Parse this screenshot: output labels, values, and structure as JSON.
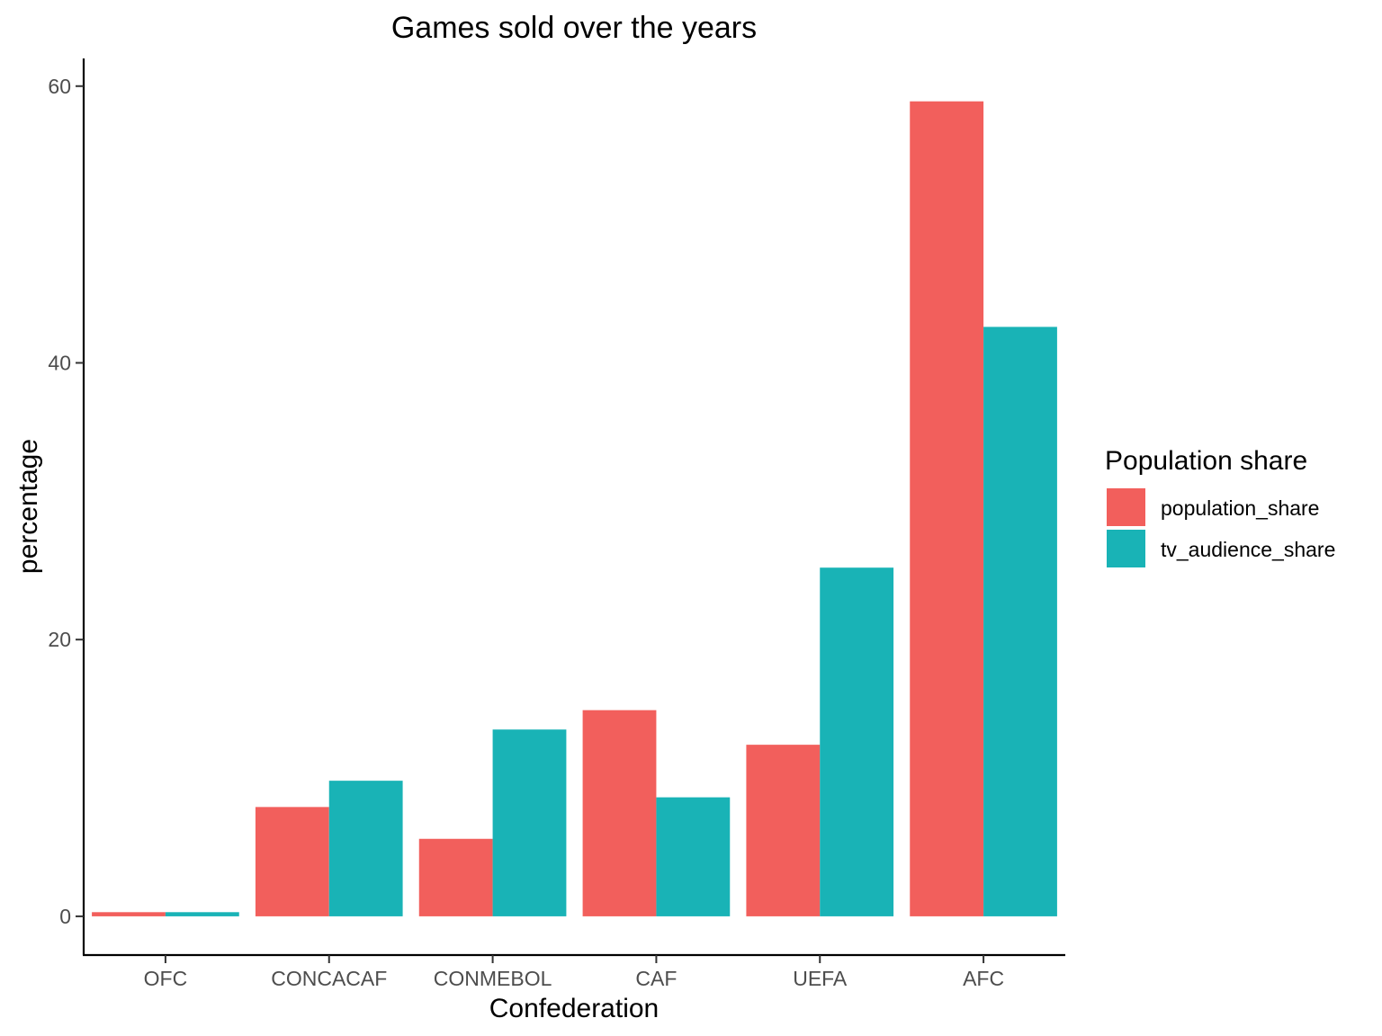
{
  "chart_data": {
    "type": "bar",
    "title": "Games sold over the years",
    "xlabel": "Confederation",
    "ylabel": "percentage",
    "categories": [
      "OFC",
      "CONCACAF",
      "CONMEBOL",
      "CAF",
      "UEFA",
      "AFC"
    ],
    "series": [
      {
        "name": "population_share",
        "color": "#F25F5C",
        "values": [
          0.3,
          7.9,
          5.6,
          14.9,
          12.4,
          58.9
        ]
      },
      {
        "name": "tv_audience_share",
        "color": "#19B3B6",
        "values": [
          0.3,
          9.8,
          13.5,
          8.6,
          25.2,
          42.6
        ]
      }
    ],
    "ylim": [
      -2.8,
      62
    ],
    "yticks": [
      0,
      20,
      40,
      60
    ],
    "legend": {
      "title": "Population share",
      "position": "right"
    },
    "grid": false
  }
}
